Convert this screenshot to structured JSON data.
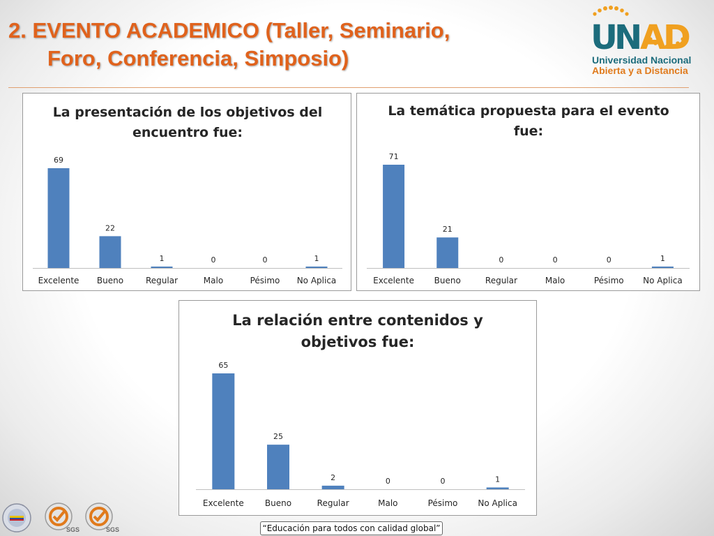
{
  "slide": {
    "title_line1": "2. EVENTO ACADEMICO (Taller, Seminario,",
    "title_line2": "Foro, Conferencia, Simposio)",
    "footer_slogan": "“Educación para todos con calidad global”"
  },
  "logo": {
    "mark": "UNAD",
    "name_line1": "Universidad Nacional",
    "name_line2": "Abierta y a Distancia",
    "colors": {
      "teal": "#1c6c7c",
      "orange": "#f0a020",
      "name": "#1c6c7c",
      "name2": "#e07a1c"
    }
  },
  "badges": [
    {
      "icon": "colombia-seal-icon",
      "text": ""
    },
    {
      "icon": "sgs-certification-icon",
      "text": "SGS"
    },
    {
      "icon": "sgs-certification-icon",
      "text": "SGS"
    }
  ],
  "colors": {
    "bar": "#4f81bd",
    "title": "#e0621c"
  },
  "chart_data": [
    {
      "type": "bar",
      "title": "La presentación de los objetivos del encuentro fue:",
      "title_lines": [
        "La presentación de los objetivos del",
        "encuentro fue:"
      ],
      "categories": [
        "Excelente",
        "Bueno",
        "Regular",
        "Malo",
        "Pésimo",
        "No Aplica"
      ],
      "values": [
        69,
        22,
        1,
        0,
        0,
        1
      ],
      "data_labels": true,
      "grid": false,
      "legend": "none"
    },
    {
      "type": "bar",
      "title": "La temática propuesta para el evento fue:",
      "title_lines": [
        "La temática propuesta para el evento",
        "fue:"
      ],
      "categories": [
        "Excelente",
        "Bueno",
        "Regular",
        "Malo",
        "Pésimo",
        "No Aplica"
      ],
      "values": [
        71,
        21,
        0,
        0,
        0,
        1
      ],
      "data_labels": true,
      "grid": false,
      "legend": "none"
    },
    {
      "type": "bar",
      "title": "La relación entre contenidos y objetivos fue:",
      "title_lines": [
        "La relación entre contenidos y",
        "objetivos fue:"
      ],
      "categories": [
        "Excelente",
        "Bueno",
        "Regular",
        "Malo",
        "Pésimo",
        "No Aplica"
      ],
      "values": [
        65,
        25,
        2,
        0,
        0,
        1
      ],
      "data_labels": true,
      "grid": false,
      "legend": "none"
    }
  ]
}
